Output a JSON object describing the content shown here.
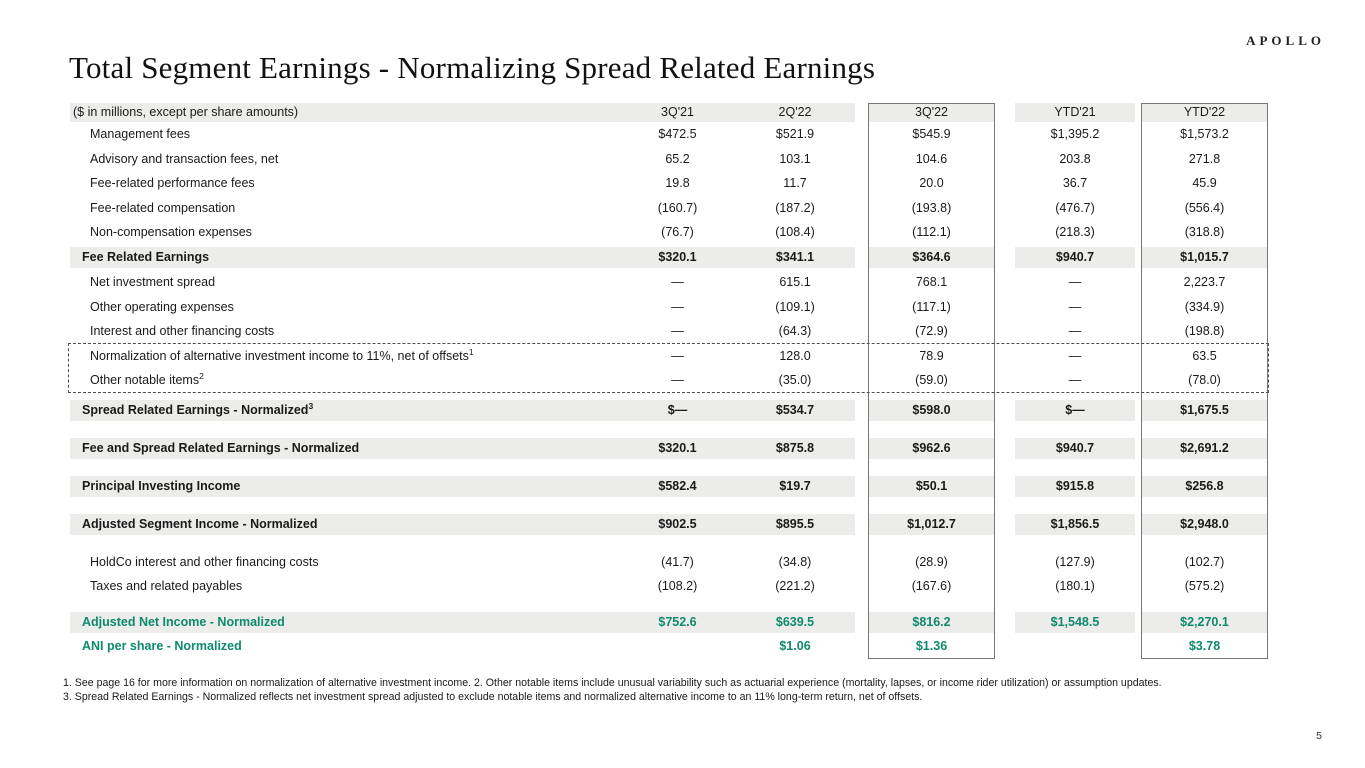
{
  "brand": {
    "logo": "APOLLO",
    "page_number": "5"
  },
  "title": "Total Segment Earnings - Normalizing Spread Related Earnings",
  "table": {
    "header_label": "($ in millions, except per share amounts)",
    "columns": [
      "3Q'21",
      "2Q'22",
      "3Q'22",
      "YTD'21",
      "YTD'22"
    ],
    "rows": [
      {
        "label": "Management fees",
        "kind": "item",
        "values": [
          "$472.5",
          "$521.9",
          "$545.9",
          "$1,395.2",
          "$1,573.2"
        ]
      },
      {
        "label": "Advisory and transaction fees, net",
        "kind": "item",
        "values": [
          "65.2",
          "103.1",
          "104.6",
          "203.8",
          "271.8"
        ]
      },
      {
        "label": "Fee-related performance fees",
        "kind": "item",
        "values": [
          "19.8",
          "11.7",
          "20.0",
          "36.7",
          "45.9"
        ]
      },
      {
        "label": "Fee-related compensation",
        "kind": "item",
        "values": [
          "(160.7)",
          "(187.2)",
          "(193.8)",
          "(476.7)",
          "(556.4)"
        ]
      },
      {
        "label": "Non-compensation expenses",
        "kind": "item",
        "values": [
          "(76.7)",
          "(108.4)",
          "(112.1)",
          "(218.3)",
          "(318.8)"
        ]
      },
      {
        "label": "Fee Related Earnings",
        "kind": "total",
        "spacing": "sp-s",
        "values": [
          "$320.1",
          "$341.1",
          "$364.6",
          "$940.7",
          "$1,015.7"
        ]
      },
      {
        "label": "Net investment spread",
        "kind": "item",
        "values": [
          "—",
          "615.1",
          "768.1",
          "—",
          "2,223.7"
        ]
      },
      {
        "label": "Other operating expenses",
        "kind": "item",
        "values": [
          "—",
          "(109.1)",
          "(117.1)",
          "—",
          "(334.9)"
        ]
      },
      {
        "label": "Interest and other financing costs",
        "kind": "item",
        "values": [
          "—",
          "(64.3)",
          "(72.9)",
          "—",
          "(198.8)"
        ]
      },
      {
        "label": "Normalization of alternative investment income to 11%, net of offsets",
        "sup": "1",
        "kind": "item",
        "values": [
          "—",
          "128.0",
          "78.9",
          "—",
          "63.5"
        ]
      },
      {
        "label": "Other notable items",
        "sup": "2",
        "kind": "item",
        "values": [
          "—",
          "(35.0)",
          "(59.0)",
          "—",
          "(78.0)"
        ]
      },
      {
        "label": "Spread Related Earnings - Normalized",
        "sup": "3",
        "kind": "total",
        "spacing": "sp-m",
        "values": [
          "$—",
          "$534.7",
          "$598.0",
          "$—",
          "$1,675.5"
        ]
      },
      {
        "label": "Fee and Spread Related Earnings - Normalized",
        "kind": "total",
        "spacing": "sp-l",
        "values": [
          "$320.1",
          "$875.8",
          "$962.6",
          "$940.7",
          "$2,691.2"
        ]
      },
      {
        "label": "Principal Investing Income",
        "kind": "total",
        "spacing": "sp-l",
        "values": [
          "$582.4",
          "$19.7",
          "$50.1",
          "$915.8",
          "$256.8"
        ]
      },
      {
        "label": "Adjusted Segment Income - Normalized",
        "kind": "total",
        "spacing": "sp-l",
        "values": [
          "$902.5",
          "$895.5",
          "$1,012.7",
          "$1,856.5",
          "$2,948.0"
        ]
      },
      {
        "label": "HoldCo interest and other financing costs",
        "kind": "item",
        "spacing": "sp-h",
        "values": [
          "(41.7)",
          "(34.8)",
          "(28.9)",
          "(127.9)",
          "(102.7)"
        ]
      },
      {
        "label": "Taxes and related payables",
        "kind": "item",
        "values": [
          "(108.2)",
          "(221.2)",
          "(167.6)",
          "(180.1)",
          "(575.2)"
        ]
      },
      {
        "label": "Adjusted Net Income - Normalized",
        "kind": "green-total",
        "spacing": "sp-a",
        "values": [
          "$752.6",
          "$639.5",
          "$816.2",
          "$1,548.5",
          "$2,270.1"
        ]
      },
      {
        "label": "ANI per share - Normalized",
        "kind": "green-item",
        "spacing": "sp-t",
        "values": [
          "",
          "$1.06",
          "$1.36",
          "",
          "$3.78"
        ]
      }
    ]
  },
  "footnotes": [
    "1. See page 16 for more information on normalization of alternative investment income. 2. Other notable items include unusual variability such as actuarial experience (mortality, lapses, or income rider utilization) or assumption updates.",
    "3. Spread Related Earnings - Normalized reflects net investment spread adjusted to exclude notable items and normalized alternative income to an 11% long-term return, net of offsets."
  ],
  "colors": {
    "green": "#0E8A6C",
    "band": "#ECECEA",
    "boxb": "#777777",
    "dashb": "#4D4D4D",
    "text": "#1A1A1A"
  }
}
